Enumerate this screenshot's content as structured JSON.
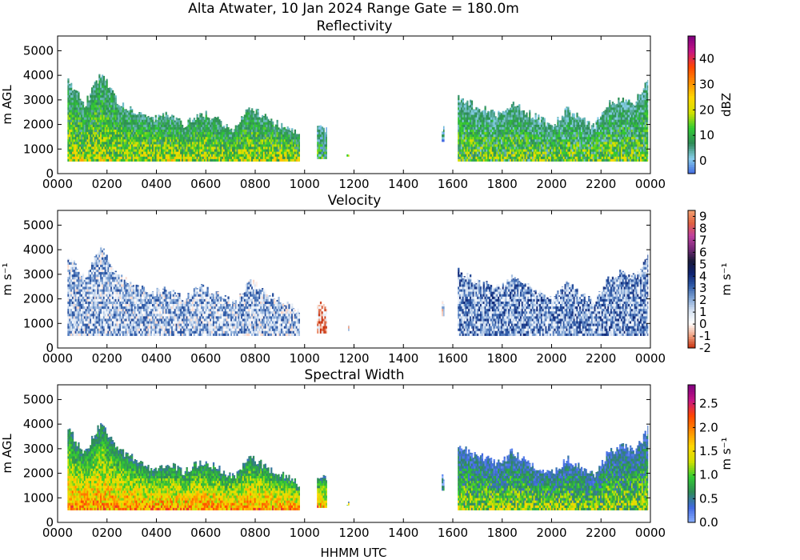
{
  "title": "Alta Atwater, 10 Jan 2024 Range Gate = 180.0m",
  "xlabel": "HHMM UTC",
  "chart_data": [
    {
      "type": "heatmap",
      "title": "Reflectivity",
      "ylabel": "m AGL",
      "colorbar_label": "dBZ",
      "xlim": [
        0,
        2400
      ],
      "ylim": [
        0,
        5600
      ],
      "x_ticks": [
        "0000",
        "0200",
        "0400",
        "0600",
        "0800",
        "1000",
        "1200",
        "1400",
        "1600",
        "1800",
        "2000",
        "2200",
        "0000"
      ],
      "y_ticks": [
        "0",
        "1000",
        "2000",
        "3000",
        "4000",
        "5000"
      ],
      "colorbar_ticks": [
        "0",
        "10",
        "20",
        "30",
        "40"
      ],
      "colorbar_range": [
        -5,
        49
      ],
      "colors": [
        "#4169e1",
        "#87ceeb",
        "#2e8b57",
        "#32cd32",
        "#d2e000",
        "#ffd700",
        "#ff8c00",
        "#ff4500",
        "#c71585",
        "#800080"
      ],
      "segments": [
        {
          "start": 40,
          "end": 980,
          "base": 500,
          "top": [
            3800,
            2800,
            4100,
            2900,
            2600,
            2200,
            2400,
            2000,
            2500,
            2200,
            1800,
            2700,
            2200,
            1900,
            1500
          ],
          "mean_value": 14
        },
        {
          "start": 1050,
          "end": 1090,
          "base": 600,
          "top": [
            1900,
            1700
          ],
          "mean_value": 7
        },
        {
          "start": 1170,
          "end": 1180,
          "base": 700,
          "top": [
            850
          ],
          "mean_value": 6
        },
        {
          "start": 1555,
          "end": 1565,
          "base": 1300,
          "top": [
            1800
          ],
          "mean_value": 2
        },
        {
          "start": 1620,
          "end": 2390,
          "base": 500,
          "top": [
            3100,
            2800,
            2600,
            2400,
            2900,
            2500,
            2200,
            2000,
            2600,
            2200,
            1900,
            2800,
            3100,
            2900,
            3800
          ],
          "mean_value": 11
        }
      ]
    },
    {
      "type": "heatmap",
      "title": "Velocity",
      "ylabel": "m s⁻¹",
      "colorbar_label": "m s⁻¹",
      "xlim": [
        0,
        2400
      ],
      "ylim": [
        0,
        5600
      ],
      "x_ticks": [
        "0000",
        "0200",
        "0400",
        "0600",
        "0800",
        "1000",
        "1200",
        "1400",
        "1600",
        "1800",
        "2000",
        "2200",
        "0000"
      ],
      "y_ticks": [
        "0",
        "1000",
        "2000",
        "3000",
        "4000",
        "5000"
      ],
      "colorbar_ticks": [
        "-2",
        "-1",
        "0",
        "1",
        "2",
        "3",
        "4",
        "5",
        "6",
        "7",
        "8",
        "9"
      ],
      "colorbar_range": [
        -2,
        9.5
      ],
      "colors": [
        "#c62d0a",
        "#f0a080",
        "#ffffff",
        "#d6e2f2",
        "#7fa3d4",
        "#2f5ba8",
        "#0d2170",
        "#1a1a3a",
        "#7a2a7a",
        "#c0409f",
        "#e06040",
        "#f3a070"
      ],
      "segments": [
        {
          "start": 40,
          "end": 980,
          "base": 500,
          "top": [
            3800,
            2800,
            4100,
            2900,
            2600,
            2200,
            2400,
            2000,
            2500,
            2200,
            1800,
            2700,
            2200,
            1900,
            1500
          ],
          "mean_value": 1.6
        },
        {
          "start": 1050,
          "end": 1090,
          "base": 600,
          "top": [
            1900,
            1700
          ],
          "mean_value": -1
        },
        {
          "start": 1170,
          "end": 1180,
          "base": 700,
          "top": [
            850
          ],
          "mean_value": 0.5
        },
        {
          "start": 1555,
          "end": 1565,
          "base": 1300,
          "top": [
            1800
          ],
          "mean_value": 0.7
        },
        {
          "start": 1620,
          "end": 2390,
          "base": 500,
          "top": [
            3100,
            2800,
            2600,
            2400,
            2900,
            2500,
            2200,
            2000,
            2600,
            2200,
            1900,
            2800,
            3100,
            2900,
            3800
          ],
          "mean_value": 2.2
        }
      ]
    },
    {
      "type": "heatmap",
      "title": "Spectral Width",
      "ylabel": "m AGL",
      "colorbar_label": "m s⁻¹",
      "xlim": [
        0,
        2400
      ],
      "ylim": [
        0,
        5600
      ],
      "x_ticks": [
        "0000",
        "0200",
        "0400",
        "0600",
        "0800",
        "1000",
        "1200",
        "1400",
        "1600",
        "1800",
        "2000",
        "2200",
        "0000"
      ],
      "y_ticks": [
        "0",
        "1000",
        "2000",
        "3000",
        "4000",
        "5000"
      ],
      "colorbar_ticks": [
        "0.0",
        "0.5",
        "1.0",
        "1.5",
        "2.0",
        "2.5"
      ],
      "colorbar_range": [
        0,
        2.9
      ],
      "colors": [
        "#8ab0ff",
        "#4169e1",
        "#2e8b57",
        "#32cd32",
        "#d2e000",
        "#ffd700",
        "#ff8c00",
        "#ff4500",
        "#c71585",
        "#800080"
      ],
      "segments": [
        {
          "start": 40,
          "end": 980,
          "base": 500,
          "top": [
            3800,
            2800,
            4100,
            2900,
            2600,
            2200,
            2400,
            2000,
            2500,
            2200,
            1800,
            2700,
            2200,
            1900,
            1500
          ],
          "mean_value": 1.5
        },
        {
          "start": 1050,
          "end": 1090,
          "base": 600,
          "top": [
            1900,
            1700
          ],
          "mean_value": 1.4
        },
        {
          "start": 1170,
          "end": 1180,
          "base": 700,
          "top": [
            850
          ],
          "mean_value": 0.8
        },
        {
          "start": 1555,
          "end": 1565,
          "base": 1300,
          "top": [
            1800
          ],
          "mean_value": 0.4
        },
        {
          "start": 1620,
          "end": 2390,
          "base": 500,
          "top": [
            3100,
            2800,
            2600,
            2400,
            2900,
            2500,
            2200,
            2000,
            2600,
            2200,
            1900,
            2800,
            3100,
            2900,
            3800
          ],
          "mean_value": 0.9
        }
      ]
    }
  ]
}
